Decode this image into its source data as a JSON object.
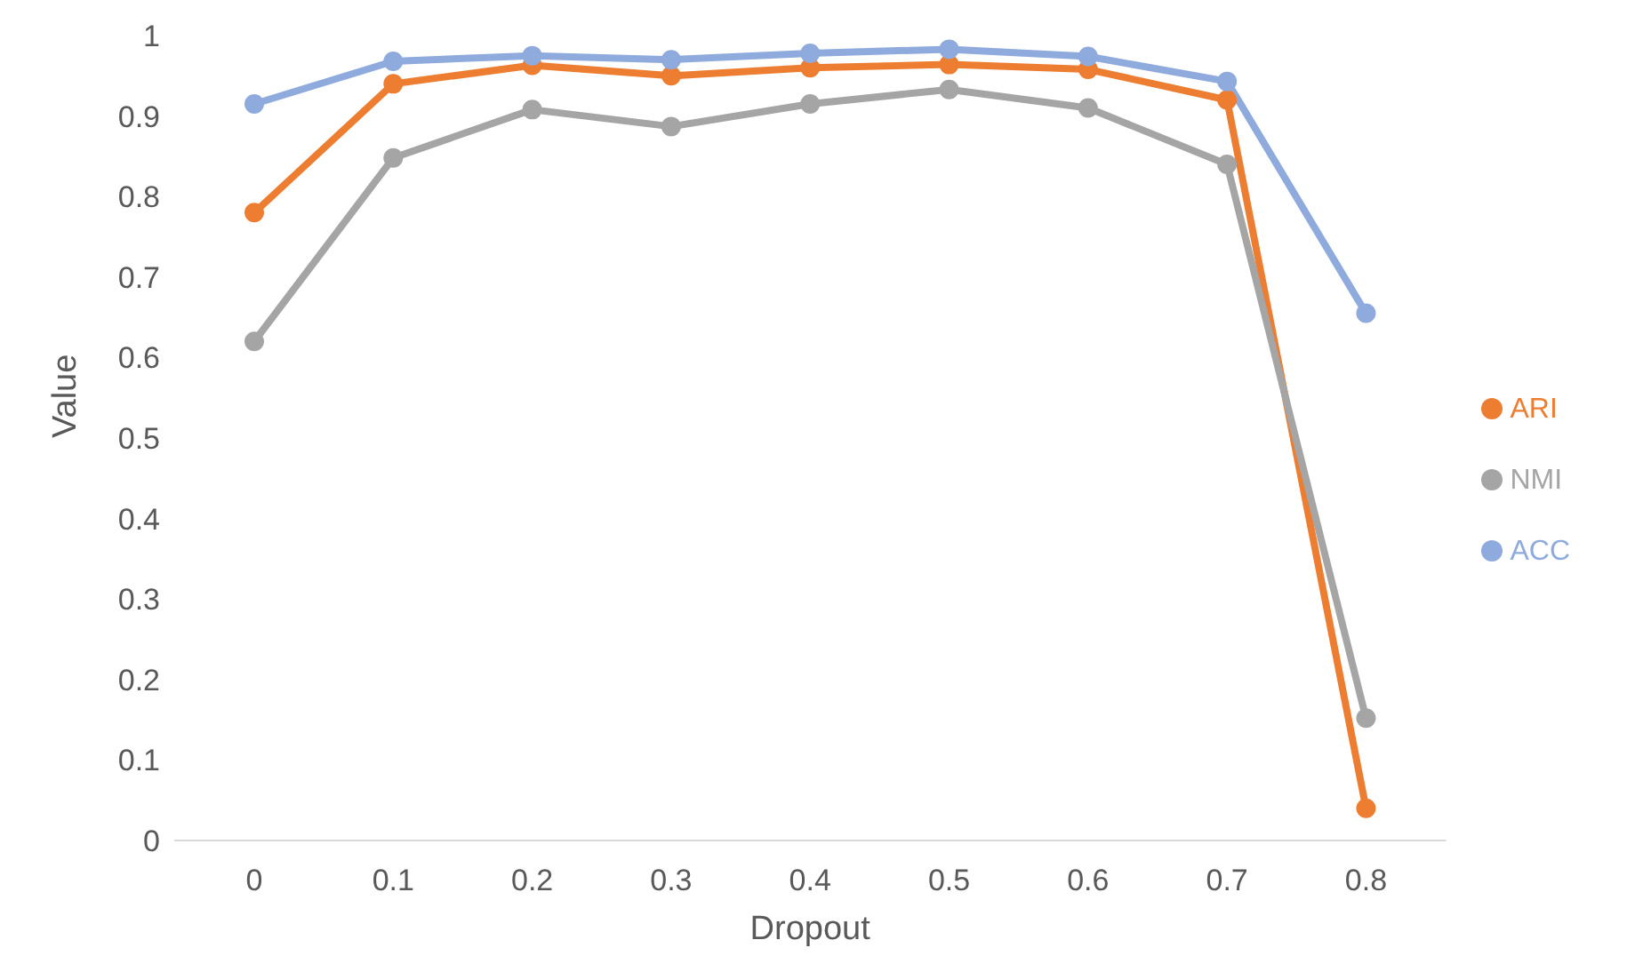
{
  "chart_data": {
    "type": "line",
    "xlabel": "Dropout",
    "ylabel": "Value",
    "categories": [
      "0",
      "0.1",
      "0.2",
      "0.3",
      "0.4",
      "0.5",
      "0.6",
      "0.7",
      "0.8"
    ],
    "series": [
      {
        "name": "ARI",
        "color": "#ed7d31",
        "values": [
          0.78,
          0.94,
          0.963,
          0.95,
          0.96,
          0.964,
          0.958,
          0.92,
          0.04
        ]
      },
      {
        "name": "NMI",
        "color": "#a5a5a5",
        "values": [
          0.62,
          0.848,
          0.908,
          0.887,
          0.915,
          0.933,
          0.91,
          0.84,
          0.152
        ]
      },
      {
        "name": "ACC",
        "color": "#8faadc",
        "values": [
          0.915,
          0.968,
          0.975,
          0.97,
          0.978,
          0.983,
          0.974,
          0.943,
          0.655
        ]
      }
    ],
    "ylim": [
      0,
      1
    ],
    "yticks": [
      0,
      0.1,
      0.2,
      0.3,
      0.4,
      0.5,
      0.6,
      0.7,
      0.8,
      0.9,
      1
    ],
    "grid": false,
    "legend": "right",
    "marker": "circle",
    "line_style": "solid"
  }
}
